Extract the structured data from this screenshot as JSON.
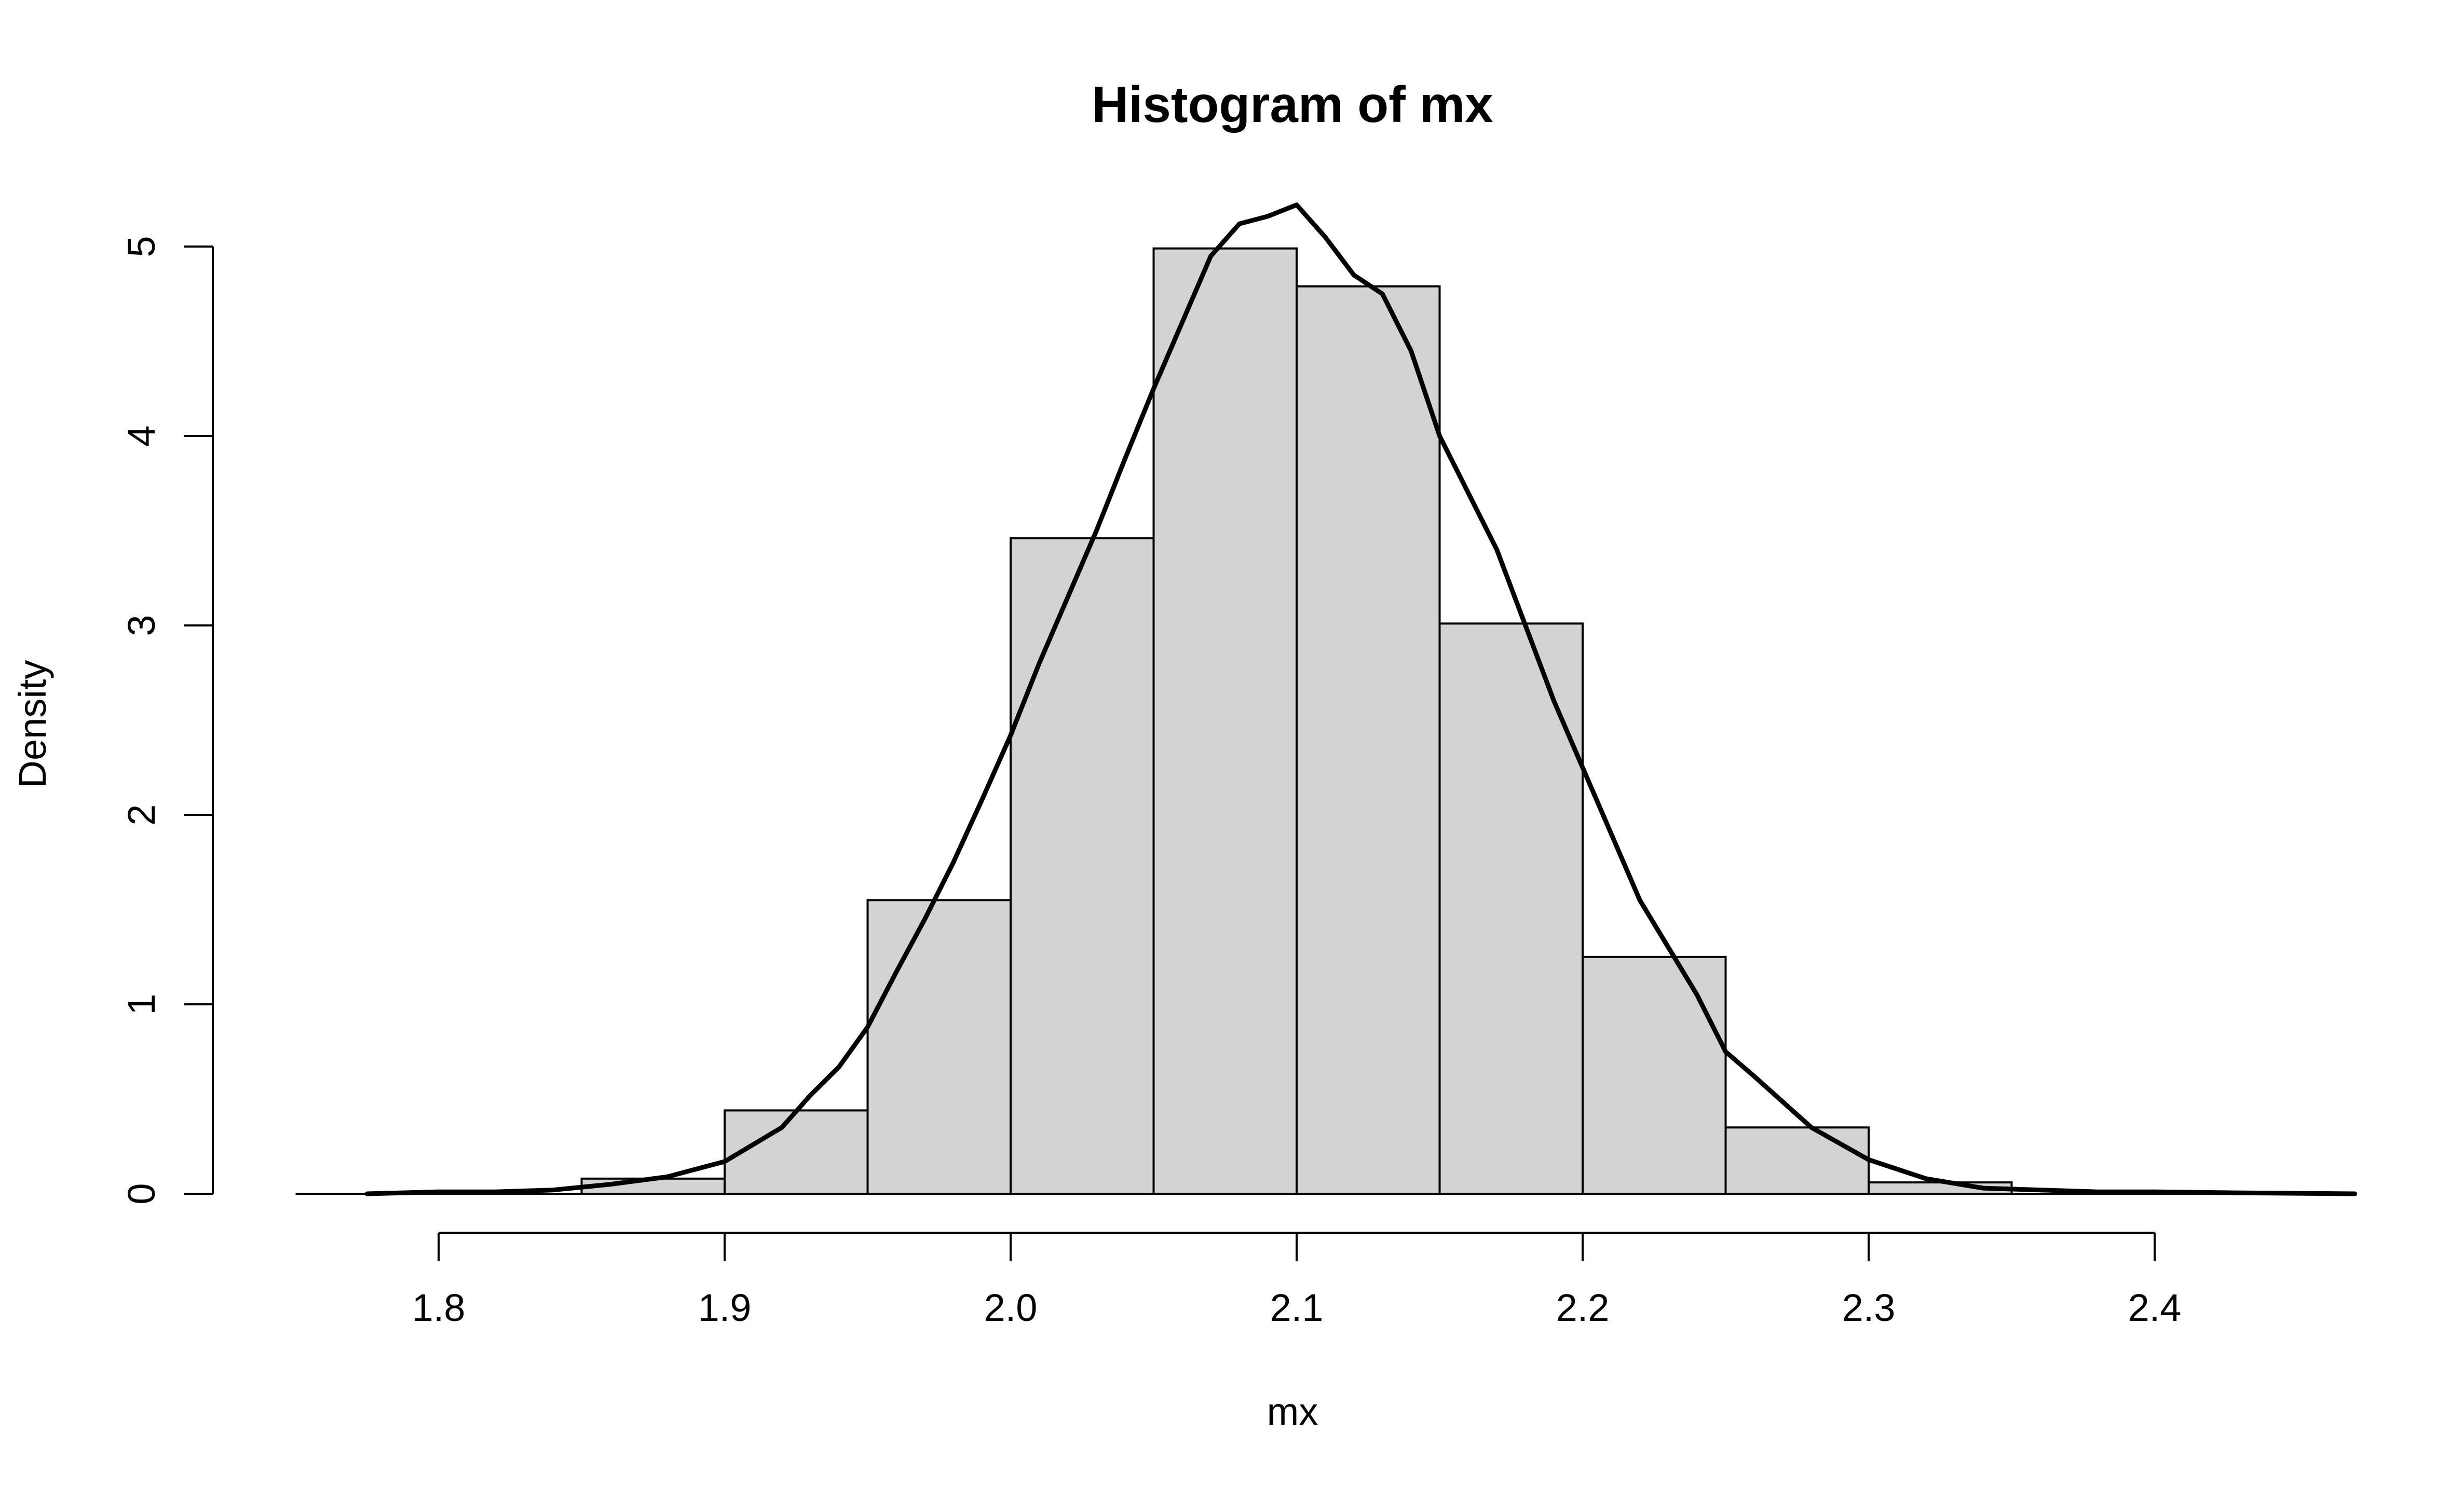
{
  "chart_data": {
    "type": "bar",
    "title": "Histogram of mx",
    "xlabel": "mx",
    "ylabel": "Density",
    "xlim": [
      1.75,
      2.47
    ],
    "ylim": [
      0,
      5.2
    ],
    "x_ticks": [
      1.8,
      1.9,
      2.0,
      2.1,
      2.2,
      2.3,
      2.4
    ],
    "x_tick_labels": [
      "1.8",
      "1.9",
      "2.0",
      "2.1",
      "2.2",
      "2.3",
      "2.4"
    ],
    "y_ticks": [
      0,
      1,
      2,
      3,
      4,
      5
    ],
    "y_tick_labels": [
      "0",
      "1",
      "2",
      "3",
      "4",
      "5"
    ],
    "bins": [
      {
        "start": 1.85,
        "end": 1.9,
        "density": 0.08
      },
      {
        "start": 1.9,
        "end": 1.95,
        "density": 0.44
      },
      {
        "start": 1.95,
        "end": 2.0,
        "density": 1.55
      },
      {
        "start": 2.0,
        "end": 2.05,
        "density": 3.46
      },
      {
        "start": 2.05,
        "end": 2.1,
        "density": 4.99
      },
      {
        "start": 2.1,
        "end": 2.15,
        "density": 4.79
      },
      {
        "start": 2.15,
        "end": 2.2,
        "density": 3.01
      },
      {
        "start": 2.2,
        "end": 2.25,
        "density": 1.25
      },
      {
        "start": 2.25,
        "end": 2.3,
        "density": 0.35
      },
      {
        "start": 2.3,
        "end": 2.35,
        "density": 0.06
      }
    ],
    "density_curve": {
      "x": [
        1.775,
        1.8,
        1.82,
        1.84,
        1.86,
        1.88,
        1.9,
        1.92,
        1.93,
        1.94,
        1.95,
        1.96,
        1.97,
        1.98,
        1.99,
        2.0,
        2.01,
        2.02,
        2.03,
        2.04,
        2.05,
        2.06,
        2.07,
        2.08,
        2.09,
        2.1,
        2.11,
        2.12,
        2.13,
        2.14,
        2.15,
        2.16,
        2.17,
        2.18,
        2.19,
        2.2,
        2.21,
        2.22,
        2.23,
        2.24,
        2.25,
        2.26,
        2.28,
        2.3,
        2.32,
        2.34,
        2.36,
        2.38,
        2.4,
        2.43,
        2.47
      ],
      "y": [
        0.0,
        0.01,
        0.01,
        0.02,
        0.05,
        0.09,
        0.17,
        0.35,
        0.52,
        0.67,
        0.88,
        1.17,
        1.45,
        1.75,
        2.08,
        2.42,
        2.8,
        3.15,
        3.5,
        3.88,
        4.25,
        4.6,
        4.95,
        5.12,
        5.16,
        5.22,
        5.05,
        4.85,
        4.75,
        4.45,
        4.0,
        3.7,
        3.4,
        3.0,
        2.6,
        2.25,
        1.9,
        1.55,
        1.3,
        1.05,
        0.75,
        0.62,
        0.35,
        0.18,
        0.08,
        0.03,
        0.02,
        0.01,
        0.01,
        0.005,
        0.0
      ]
    }
  }
}
